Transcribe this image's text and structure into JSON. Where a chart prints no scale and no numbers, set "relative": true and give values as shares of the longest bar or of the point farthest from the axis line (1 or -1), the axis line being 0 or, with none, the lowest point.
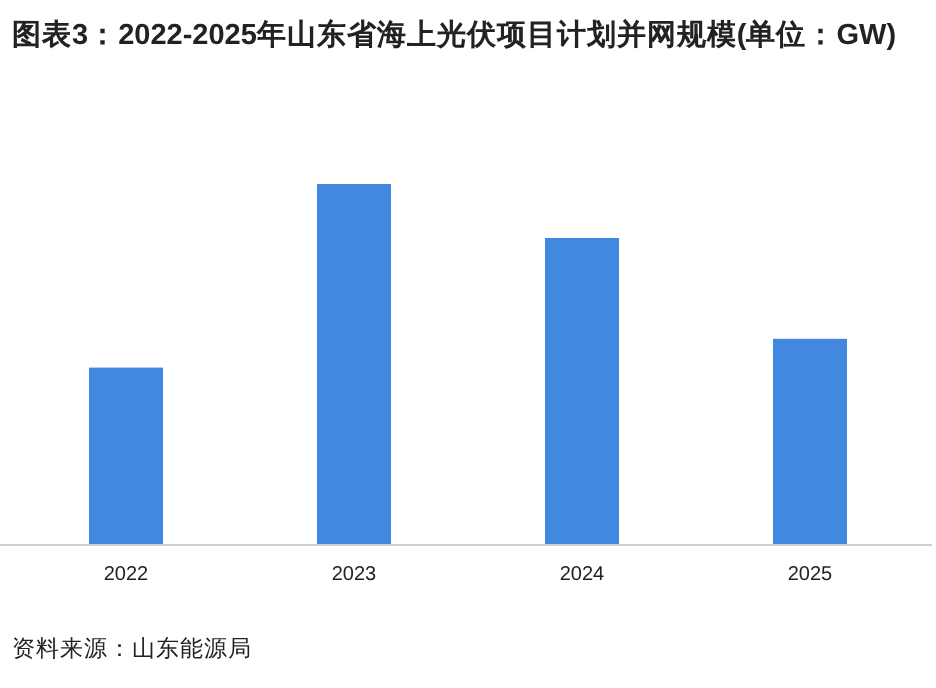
{
  "chart_data": {
    "type": "bar",
    "title": "图表3：2022-2025年山东省海上光伏项目计划并网规模(单位：GW)",
    "categories": [
      "2022",
      "2023",
      "2024",
      "2025"
    ],
    "values": [
      0.49,
      1,
      0.85,
      0.57
    ],
    "color": "#4287e0",
    "relative": true,
    "annotations": [
      "资料来源：山东能源局"
    ]
  }
}
